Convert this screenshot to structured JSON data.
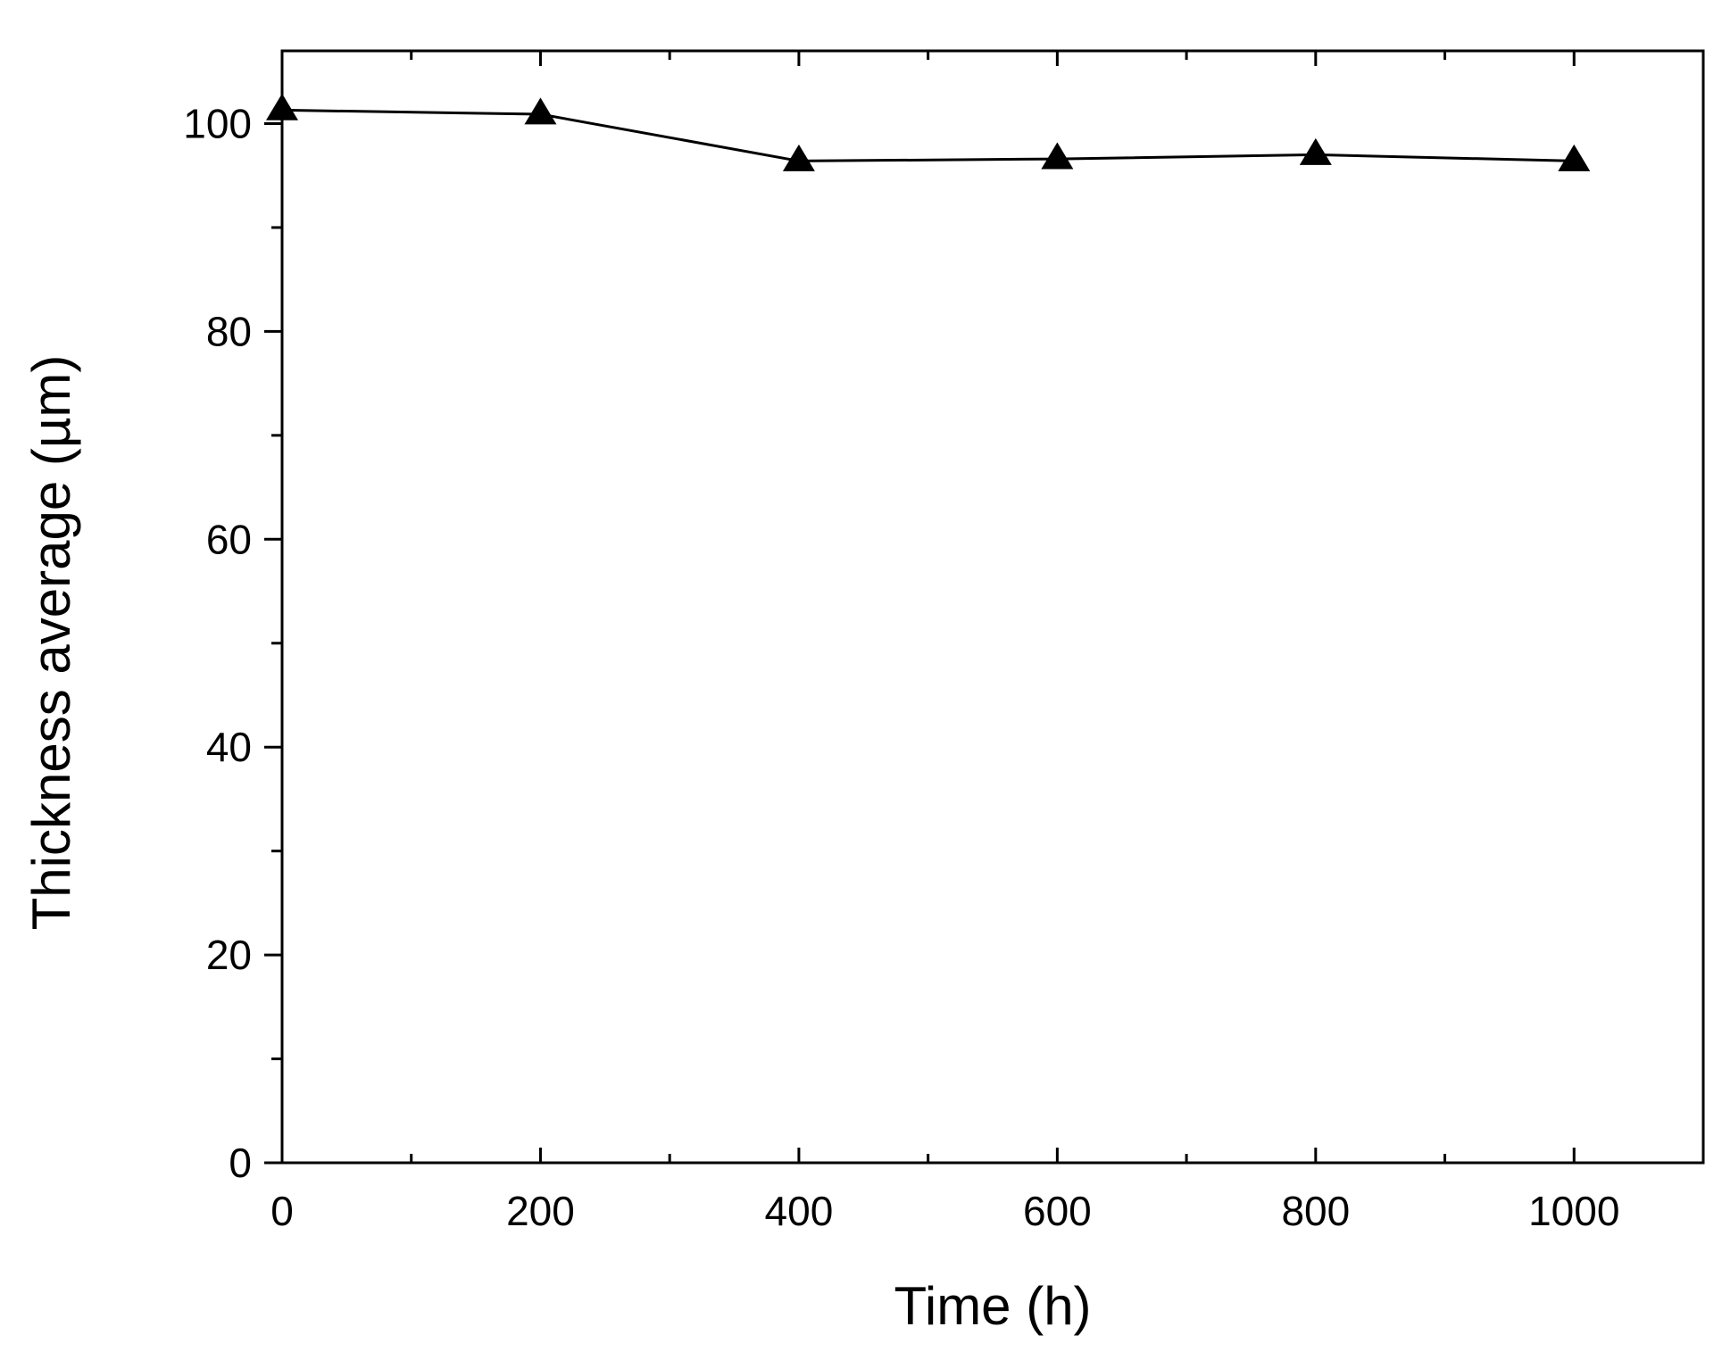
{
  "chart_data": {
    "type": "line",
    "title": "",
    "xlabel": "Time (h)",
    "ylabel": "Thickness average (µm)",
    "xlim": [
      0,
      1100
    ],
    "ylim": [
      0,
      107
    ],
    "x_ticks": [
      0,
      200,
      400,
      600,
      800,
      1000
    ],
    "x_tick_labels": [
      "0",
      "200",
      "400",
      "600",
      "800",
      "1000"
    ],
    "x_minor_ticks": [
      100,
      300,
      500,
      700,
      900,
      1100
    ],
    "y_ticks": [
      0,
      20,
      40,
      60,
      80,
      100
    ],
    "y_tick_labels": [
      "0",
      "20",
      "40",
      "60",
      "80",
      "100"
    ],
    "y_minor_ticks": [
      10,
      30,
      50,
      70,
      90
    ],
    "grid": false,
    "legend": "none",
    "marker": "triangle",
    "series": [
      {
        "x": [
          0,
          200,
          400,
          600,
          800,
          1000
        ],
        "y": [
          101.3,
          100.9,
          96.4,
          96.6,
          97.0,
          96.4
        ],
        "color": "#000000"
      }
    ]
  }
}
